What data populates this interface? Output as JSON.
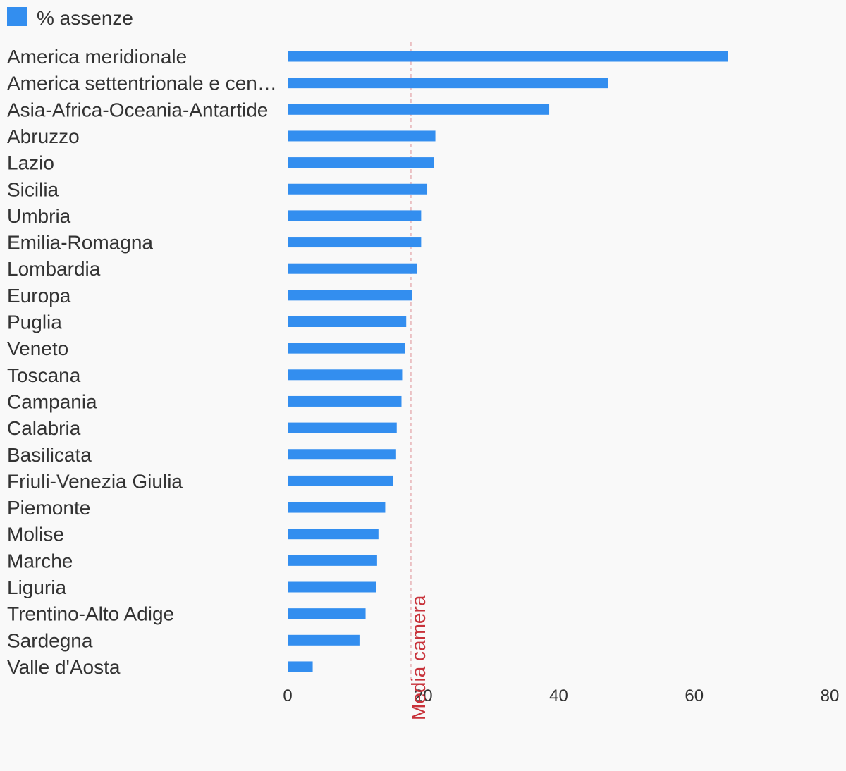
{
  "chart_data": {
    "type": "bar",
    "orientation": "horizontal",
    "series": [
      {
        "name": "% assenze",
        "color": "#338eef"
      }
    ],
    "categories": [
      "America meridionale",
      "America settentrionale e cen…",
      "Asia-Africa-Oceania-Antartide",
      "Abruzzo",
      "Lazio",
      "Sicilia",
      "Umbria",
      "Emilia-Romagna",
      "Lombardia",
      "Europa",
      "Puglia",
      "Veneto",
      "Toscana",
      "Campania",
      "Calabria",
      "Basilicata",
      "Friuli-Venezia Giulia",
      "Piemonte",
      "Molise",
      "Marche",
      "Liguria",
      "Trentino-Alto Adige",
      "Sardegna",
      "Valle d'Aosta"
    ],
    "values": [
      65.0,
      47.3,
      38.6,
      21.8,
      21.6,
      20.6,
      19.7,
      19.7,
      19.1,
      18.4,
      17.5,
      17.3,
      16.9,
      16.8,
      16.1,
      15.9,
      15.6,
      14.4,
      13.4,
      13.2,
      13.1,
      11.5,
      10.6,
      3.7
    ],
    "xlim": [
      0,
      80
    ],
    "xticks": [
      0,
      20,
      40,
      60,
      80
    ],
    "grid": false,
    "legend": "top-left",
    "reference_line": {
      "label": "Media camera",
      "value": 18.2,
      "color": "#c8323a"
    }
  }
}
